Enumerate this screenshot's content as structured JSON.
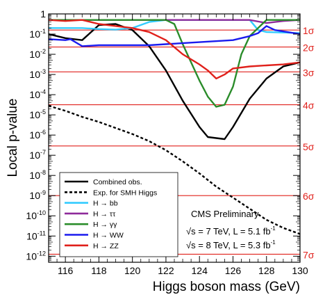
{
  "chart_data": {
    "type": "line",
    "xlabel": "Higgs boson mass (GeV)",
    "ylabel": "Local p-value",
    "xlim": [
      115,
      130
    ],
    "ylim_log10": [
      -12.3,
      0
    ],
    "y_scale": "log",
    "x_ticks": [
      116,
      118,
      120,
      122,
      124,
      126,
      128,
      130
    ],
    "x_tick_labels": [
      "116",
      "118",
      "120",
      "122",
      "124",
      "126",
      "128",
      "130"
    ],
    "y_ticks": [
      {
        "exp": 0,
        "base": "1",
        "sup": ""
      },
      {
        "exp": -1,
        "base": "10",
        "sup": "-1"
      },
      {
        "exp": -2,
        "base": "10",
        "sup": "-2"
      },
      {
        "exp": -3,
        "base": "10",
        "sup": "-3"
      },
      {
        "exp": -4,
        "base": "10",
        "sup": "-4"
      },
      {
        "exp": -5,
        "base": "10",
        "sup": "-5"
      },
      {
        "exp": -6,
        "base": "10",
        "sup": "-6"
      },
      {
        "exp": -7,
        "base": "10",
        "sup": "-7"
      },
      {
        "exp": -8,
        "base": "10",
        "sup": "-8"
      },
      {
        "exp": -9,
        "base": "10",
        "sup": "-9"
      },
      {
        "exp": -10,
        "base": "10",
        "sup": "-10"
      },
      {
        "exp": -11,
        "base": "10",
        "sup": "-11"
      },
      {
        "exp": -12,
        "base": "10",
        "sup": "-12"
      }
    ],
    "sigma_lines": [
      {
        "label": "1σ",
        "log10p": -0.8
      },
      {
        "label": "2σ",
        "log10p": -1.64
      },
      {
        "label": "3σ",
        "log10p": -2.87
      },
      {
        "label": "4σ",
        "log10p": -4.5
      },
      {
        "label": "5σ",
        "log10p": -6.54
      },
      {
        "label": "6σ",
        "log10p": -9.0
      },
      {
        "label": "7σ",
        "log10p": -11.9
      }
    ],
    "series": [
      {
        "name": "Combined obs.",
        "color": "#000000",
        "dash": "solid",
        "x": [
          115,
          116,
          117,
          118,
          119,
          120,
          121,
          122,
          123,
          124,
          124.5,
          125,
          125.5,
          126,
          127,
          128,
          129,
          130
        ],
        "log10p": [
          -1.0,
          -1.2,
          -1.3,
          -0.55,
          -0.5,
          -0.8,
          -1.6,
          -2.8,
          -4.3,
          -5.6,
          -6.1,
          -6.15,
          -6.2,
          -5.6,
          -4.2,
          -3.2,
          -2.6,
          -2.4
        ]
      },
      {
        "name": "Exp. for SMH Higgs",
        "color": "#000000",
        "dash": "dashed",
        "x": [
          115,
          116,
          117,
          118,
          119,
          120,
          121,
          122,
          123,
          124,
          125,
          126,
          127,
          128,
          129,
          130
        ],
        "log10p": [
          -4.55,
          -4.8,
          -5.1,
          -5.35,
          -5.65,
          -5.95,
          -6.3,
          -6.75,
          -7.3,
          -7.9,
          -8.55,
          -9.1,
          -9.65,
          -10.2,
          -10.6,
          -10.9
        ]
      },
      {
        "name": "H → bb",
        "color": "#33ccff",
        "dash": "solid",
        "x": [
          115,
          115.5,
          117,
          118,
          119,
          120,
          121,
          122,
          122.5,
          125,
          127,
          127.5,
          128,
          130
        ],
        "log10p": [
          -0.7,
          -0.7,
          -0.7,
          -0.75,
          -0.78,
          -0.7,
          -0.4,
          -0.3,
          -0.3,
          -0.3,
          -0.3,
          -0.8,
          -0.9,
          -0.95
        ]
      },
      {
        "name": "H → ττ",
        "color": "#8e2a9a",
        "dash": "solid",
        "x": [
          115,
          117,
          119,
          121,
          123,
          125,
          127,
          128,
          129,
          130
        ],
        "log10p": [
          -0.3,
          -0.3,
          -0.3,
          -0.3,
          -0.3,
          -0.3,
          -0.3,
          -0.45,
          -0.35,
          -0.3
        ]
      },
      {
        "name": "H → γγ",
        "color": "#2a8c2a",
        "dash": "solid",
        "x": [
          115,
          117,
          119,
          121,
          122,
          122.5,
          123,
          124,
          124.5,
          125,
          125.5,
          126,
          126.5,
          127,
          128,
          130
        ],
        "log10p": [
          -0.3,
          -0.3,
          -0.3,
          -0.3,
          -0.3,
          -0.5,
          -1.5,
          -3.3,
          -4.1,
          -4.6,
          -4.5,
          -3.6,
          -2.0,
          -1.1,
          -0.3,
          -0.3
        ]
      },
      {
        "name": "H → WW",
        "color": "#1a1aee",
        "dash": "solid",
        "x": [
          115,
          116,
          116.3,
          117,
          118,
          120,
          121,
          122,
          124,
          126,
          127,
          127.5,
          128,
          128.5,
          130
        ],
        "log10p": [
          -1.25,
          -1.3,
          -1.25,
          -1.6,
          -1.55,
          -1.55,
          -1.55,
          -1.5,
          -1.4,
          -1.3,
          -1.1,
          -0.95,
          -0.6,
          -0.8,
          -1.0
        ]
      },
      {
        "name": "H → ZZ",
        "color": "#e0201b",
        "dash": "solid",
        "x": [
          115,
          116,
          117,
          118,
          119,
          120,
          121,
          122,
          123,
          124,
          124.5,
          125,
          125.5,
          126,
          127,
          128,
          129,
          130
        ],
        "log10p": [
          -0.3,
          -0.35,
          -0.3,
          -0.5,
          -0.6,
          -0.7,
          -0.9,
          -1.3,
          -2.0,
          -2.5,
          -2.8,
          -3.2,
          -3.0,
          -2.7,
          -2.6,
          -2.55,
          -2.5,
          -2.4
        ]
      }
    ],
    "legend": {
      "placement": "bottom-left",
      "entries": [
        "Combined obs.",
        "Exp. for SMH Higgs",
        "H → bb",
        "H → ττ",
        "H → γγ",
        "H → WW",
        "H → ZZ"
      ]
    },
    "annotations": {
      "experiment": "CMS Preliminary",
      "line1_prefix": "√s = 7 TeV, L = 5.1 fb",
      "line1_sup": "-1",
      "line2_prefix": "√s = 8 TeV, L = 5.3 fb",
      "line2_sup": "-1"
    },
    "colors": {
      "sigma": "#e0201b",
      "axis": "#000000"
    }
  }
}
